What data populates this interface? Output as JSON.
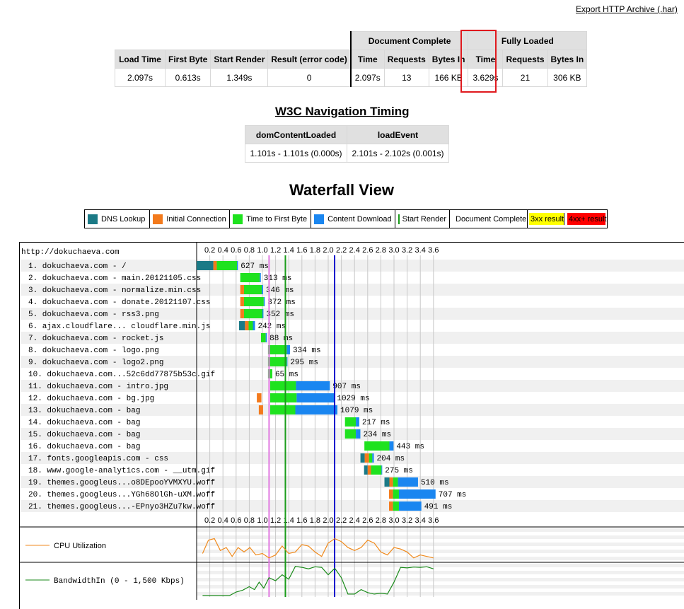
{
  "export_link": "Export HTTP Archive (.har)",
  "summary": {
    "group_document_complete": "Document Complete",
    "group_fully_loaded": "Fully Loaded",
    "headers": [
      "Load Time",
      "First Byte",
      "Start Render",
      "Result (error code)",
      "Time",
      "Requests",
      "Bytes In",
      "Time",
      "Requests",
      "Bytes In"
    ],
    "values": [
      "2.097s",
      "0.613s",
      "1.349s",
      "0",
      "2.097s",
      "13",
      "166 KB",
      "3.629s",
      "21",
      "306 KB"
    ]
  },
  "nav_timing": {
    "title": "W3C Navigation Timing",
    "headers": [
      "domContentLoaded",
      "loadEvent"
    ],
    "values": [
      "1.101s - 1.101s (0.000s)",
      "2.101s - 2.102s (0.001s)"
    ]
  },
  "waterfall": {
    "title": "Waterfall View",
    "legend": [
      {
        "label": "DNS Lookup",
        "color": "#1b7a86",
        "kind": "swatch"
      },
      {
        "label": "Initial Connection",
        "color": "#f37a1c",
        "kind": "swatch"
      },
      {
        "label": "Time to First Byte",
        "color": "#1fe21f",
        "kind": "swatch"
      },
      {
        "label": "Content Download",
        "color": "#1a86f0",
        "kind": "swatch"
      },
      {
        "label": "Start Render",
        "color": "#1a9c1a",
        "kind": "line"
      },
      {
        "label": "Document Complete",
        "color": "#0000cc",
        "kind": "line"
      },
      {
        "label": "3xx result",
        "color": "#ffff00",
        "kind": "fill"
      },
      {
        "label": "4xx+ result",
        "color": "#ff0000",
        "kind": "fill"
      }
    ],
    "page_url": "http://dokuchaeva.com",
    "axis_ticks": [
      "0.2",
      "0.4",
      "0.6",
      "0.8",
      "1.0",
      "1.2",
      "1.4",
      "1.6",
      "1.8",
      "2.0",
      "2.2",
      "2.4",
      "2.6",
      "2.8",
      "3.0",
      "3.2",
      "3.4",
      "3.6"
    ],
    "markers": {
      "start_render": 1.349,
      "dom_content_loaded": 1.101,
      "document_complete": 2.097
    },
    "colors": {
      "dns": "#1b7a86",
      "connect": "#f37a1c",
      "ttfb": "#1fe21f",
      "download": "#1a86f0",
      "start_render": "#1a9c1a",
      "doc_complete": "#0000cc",
      "dom_content_loaded": "#e17ae1"
    },
    "requests": [
      {
        "label": "1. dokuchaeva.com - /",
        "time": "627 ms",
        "segs": [
          [
            "dns",
            0.0,
            0.254
          ],
          [
            "connect",
            0.254,
            0.306
          ],
          [
            "ttfb",
            0.306,
            0.613
          ],
          [
            "download",
            0.613,
            0.627
          ]
        ]
      },
      {
        "label": "2. dokuchaeva.com - main.20121105.css",
        "time": "313 ms",
        "segs": [
          [
            "ttfb",
            0.663,
            0.96
          ],
          [
            "download",
            0.96,
            0.976
          ]
        ]
      },
      {
        "label": "3. dokuchaeva.com - normalize.min.css",
        "time": "346 ms",
        "segs": [
          [
            "connect",
            0.663,
            0.72
          ],
          [
            "ttfb",
            0.72,
            0.99
          ],
          [
            "download",
            0.99,
            1.01
          ]
        ]
      },
      {
        "label": "4. dokuchaeva.com - donate.20121107.css",
        "time": "372 ms",
        "segs": [
          [
            "connect",
            0.663,
            0.72
          ],
          [
            "ttfb",
            0.72,
            1.02
          ],
          [
            "download",
            1.02,
            1.035
          ]
        ]
      },
      {
        "label": "5. dokuchaeva.com - rss3.png",
        "time": "352 ms",
        "segs": [
          [
            "connect",
            0.663,
            0.72
          ],
          [
            "ttfb",
            0.72,
            1.0
          ],
          [
            "download",
            1.0,
            1.015
          ]
        ]
      },
      {
        "label": "6. ajax.cloudflare... cloudflare.min.js",
        "time": "242 ms",
        "segs": [
          [
            "dns",
            0.645,
            0.735
          ],
          [
            "connect",
            0.735,
            0.79
          ],
          [
            "ttfb",
            0.79,
            0.855
          ],
          [
            "download",
            0.855,
            0.887
          ]
        ]
      },
      {
        "label": "7. dokuchaeva.com - rocket.js",
        "time": "88 ms",
        "segs": [
          [
            "ttfb",
            0.978,
            1.05
          ],
          [
            "download",
            1.05,
            1.066
          ]
        ]
      },
      {
        "label": "8. dokuchaeva.com - logo.png",
        "time": "334 ms",
        "segs": [
          [
            "ttfb",
            1.085,
            1.37
          ],
          [
            "download",
            1.37,
            1.419
          ]
        ]
      },
      {
        "label": "9. dokuchaeva.com - logo2.png",
        "time": "295 ms",
        "segs": [
          [
            "ttfb",
            1.085,
            1.37
          ],
          [
            "download",
            1.37,
            1.38
          ]
        ]
      },
      {
        "label": "10. dokuchaeva.com...52c6dd77875b53c.gif",
        "time": "65 ms",
        "segs": [
          [
            "ttfb",
            1.085,
            1.15
          ]
        ]
      },
      {
        "label": "11. dokuchaeva.com - intro.jpg",
        "time": "907 ms",
        "segs": [
          [
            "ttfb",
            1.118,
            1.51
          ],
          [
            "download",
            1.51,
            2.025
          ]
        ]
      },
      {
        "label": "12. dokuchaeva.com - bg.jpg",
        "time": "1029 ms",
        "segs": [
          [
            "connect",
            0.915,
            0.985
          ],
          [
            "ttfb",
            1.118,
            1.52
          ],
          [
            "download",
            1.52,
            2.09
          ]
        ]
      },
      {
        "label": "13. dokuchaeva.com - bag",
        "time": "1079 ms",
        "segs": [
          [
            "connect",
            0.945,
            1.01
          ],
          [
            "ttfb",
            1.118,
            1.5
          ],
          [
            "download",
            1.5,
            2.14
          ]
        ]
      },
      {
        "label": "14. dokuchaeva.com - bag",
        "time": "217 ms",
        "segs": [
          [
            "ttfb",
            2.255,
            2.42
          ],
          [
            "download",
            2.42,
            2.472
          ]
        ]
      },
      {
        "label": "15. dokuchaeva.com - bag",
        "time": "234 ms",
        "segs": [
          [
            "ttfb",
            2.255,
            2.42
          ],
          [
            "download",
            2.42,
            2.489
          ]
        ]
      },
      {
        "label": "16. dokuchaeva.com - bag",
        "time": "443 ms",
        "segs": [
          [
            "ttfb",
            2.55,
            2.93
          ],
          [
            "download",
            2.93,
            2.993
          ]
        ]
      },
      {
        "label": "17. fonts.googleapis.com - css",
        "time": "204 ms",
        "segs": [
          [
            "dns",
            2.49,
            2.555
          ],
          [
            "connect",
            2.555,
            2.62
          ],
          [
            "ttfb",
            2.62,
            2.67
          ],
          [
            "download",
            2.67,
            2.694
          ]
        ]
      },
      {
        "label": "18. www.google-analytics.com - __utm.gif",
        "time": "275 ms",
        "segs": [
          [
            "dns",
            2.545,
            2.6
          ],
          [
            "connect",
            2.6,
            2.65
          ],
          [
            "ttfb",
            2.65,
            2.81
          ],
          [
            "download",
            2.81,
            2.82
          ]
        ]
      },
      {
        "label": "19. themes.googleus...o8DEpooYVMXYU.woff",
        "time": "510 ms",
        "segs": [
          [
            "dns",
            2.855,
            2.93
          ],
          [
            "connect",
            2.93,
            2.985
          ],
          [
            "ttfb",
            2.985,
            3.06
          ],
          [
            "download",
            3.06,
            3.365
          ]
        ]
      },
      {
        "label": "20. themes.googleus...YGh68OlGh-uXM.woff",
        "time": "707 ms",
        "segs": [
          [
            "connect",
            2.925,
            2.985
          ],
          [
            "ttfb",
            2.985,
            3.075
          ],
          [
            "download",
            3.075,
            3.632
          ]
        ]
      },
      {
        "label": "21. themes.googleus...-EPnyo3HZu7kw.woff",
        "time": "491 ms",
        "segs": [
          [
            "connect",
            2.925,
            2.985
          ],
          [
            "ttfb",
            2.985,
            3.075
          ],
          [
            "download",
            3.075,
            3.416
          ]
        ]
      }
    ]
  },
  "cpu": {
    "label": "CPU Utilization",
    "color": "#f08a1c",
    "samples": [
      [
        0.09,
        0.25
      ],
      [
        0.18,
        0.7
      ],
      [
        0.27,
        0.75
      ],
      [
        0.36,
        0.35
      ],
      [
        0.45,
        0.45
      ],
      [
        0.54,
        0.15
      ],
      [
        0.63,
        0.45
      ],
      [
        0.72,
        0.3
      ],
      [
        0.81,
        0.45
      ],
      [
        0.9,
        0.2
      ],
      [
        1.0,
        0.25
      ],
      [
        1.1,
        0.1
      ],
      [
        1.2,
        0.2
      ],
      [
        1.3,
        0.5
      ],
      [
        1.4,
        0.25
      ],
      [
        1.5,
        0.3
      ],
      [
        1.6,
        0.55
      ],
      [
        1.7,
        0.5
      ],
      [
        1.8,
        0.3
      ],
      [
        1.9,
        0.15
      ],
      [
        2.0,
        0.6
      ],
      [
        2.1,
        0.75
      ],
      [
        2.2,
        0.65
      ],
      [
        2.3,
        0.45
      ],
      [
        2.4,
        0.35
      ],
      [
        2.5,
        0.45
      ],
      [
        2.6,
        0.7
      ],
      [
        2.7,
        0.6
      ],
      [
        2.8,
        0.3
      ],
      [
        2.9,
        0.2
      ],
      [
        3.0,
        0.45
      ],
      [
        3.1,
        0.4
      ],
      [
        3.2,
        0.3
      ],
      [
        3.3,
        0.1
      ],
      [
        3.4,
        0.2
      ],
      [
        3.5,
        0.15
      ],
      [
        3.6,
        0.1
      ]
    ]
  },
  "bandwidth": {
    "label": "BandwidthIn (0 - 1,500 Kbps)",
    "color": "#1a8a1a",
    "samples": [
      [
        0.09,
        0.0
      ],
      [
        0.5,
        0.0
      ],
      [
        0.6,
        0.12
      ],
      [
        0.7,
        0.18
      ],
      [
        0.8,
        0.3
      ],
      [
        0.88,
        0.2
      ],
      [
        0.95,
        0.45
      ],
      [
        1.02,
        0.25
      ],
      [
        1.1,
        0.6
      ],
      [
        1.2,
        0.5
      ],
      [
        1.3,
        0.7
      ],
      [
        1.4,
        0.55
      ],
      [
        1.5,
        0.98
      ],
      [
        1.6,
        0.95
      ],
      [
        1.7,
        0.9
      ],
      [
        1.8,
        0.97
      ],
      [
        1.9,
        0.95
      ],
      [
        2.0,
        0.7
      ],
      [
        2.1,
        0.92
      ],
      [
        2.2,
        0.6
      ],
      [
        2.3,
        0.05
      ],
      [
        2.4,
        0.05
      ],
      [
        2.5,
        0.2
      ],
      [
        2.6,
        0.1
      ],
      [
        2.7,
        0.05
      ],
      [
        2.8,
        0.08
      ],
      [
        2.9,
        0.05
      ],
      [
        3.0,
        0.45
      ],
      [
        3.1,
        0.95
      ],
      [
        3.2,
        0.93
      ],
      [
        3.3,
        0.96
      ],
      [
        3.4,
        0.95
      ],
      [
        3.5,
        0.97
      ],
      [
        3.6,
        0.9
      ]
    ]
  }
}
